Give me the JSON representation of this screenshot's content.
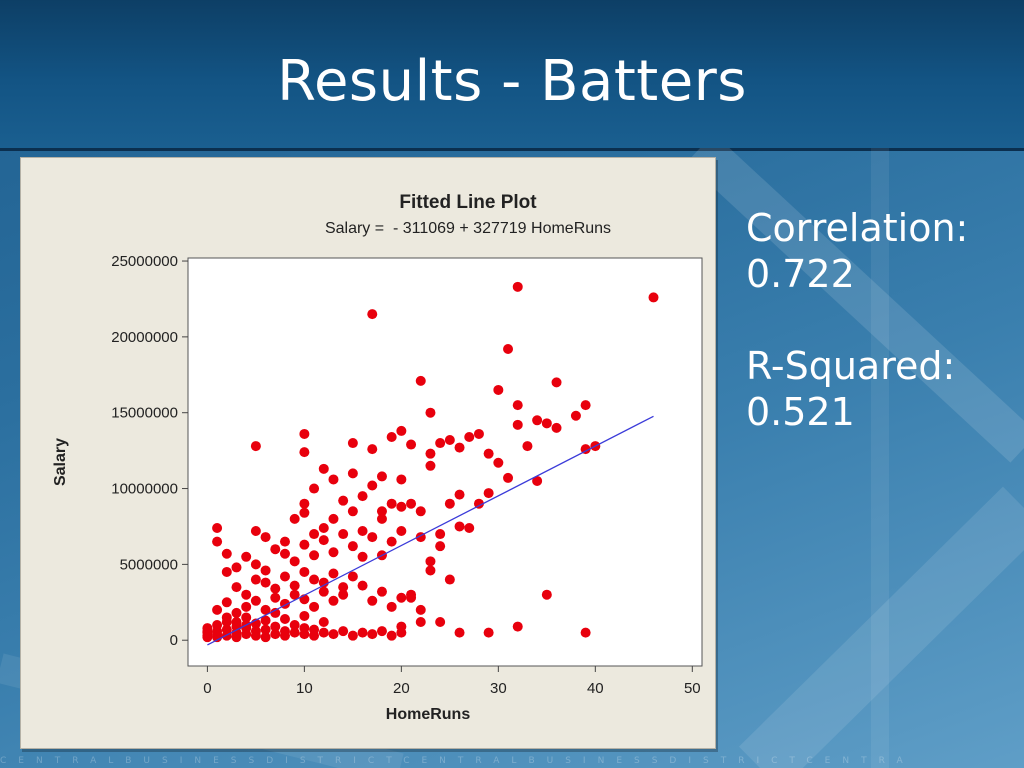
{
  "slide": {
    "title": "Results - Batters",
    "correlation_label": "Correlation:",
    "correlation_value": "0.722",
    "rsquared_label": "R-Squared:",
    "rsquared_value": "0.521",
    "footer_text": "CENTRALBUSINESSDISTRICTCENTRALBUSINESSDISTRICTCENTRA"
  },
  "chart_data": {
    "type": "scatter",
    "title": "Fitted Line Plot",
    "subtitle": "Salary =  - 311069 + 327719 HomeRuns",
    "xlabel": "HomeRuns",
    "ylabel": "Salary",
    "xlim": [
      -2,
      51
    ],
    "ylim": [
      -1700000,
      25200000
    ],
    "xticks": [
      0,
      10,
      20,
      30,
      40,
      50
    ],
    "yticks": [
      0,
      5000000,
      10000000,
      15000000,
      20000000,
      25000000
    ],
    "ytick_labels": [
      "0",
      "5000000",
      "10000000",
      "15000000",
      "20000000",
      "25000000"
    ],
    "grid": false,
    "point_color": "#e8000d",
    "line_color": "#3b3bd9",
    "fit_line": {
      "intercept": -311069,
      "slope": 327719,
      "x_range": [
        0,
        46
      ]
    },
    "points": [
      [
        0,
        300000
      ],
      [
        0,
        500000
      ],
      [
        0,
        800000
      ],
      [
        1,
        200000
      ],
      [
        1,
        600000
      ],
      [
        1,
        400000
      ],
      [
        1,
        1000000
      ],
      [
        2,
        300000
      ],
      [
        2,
        700000
      ],
      [
        2,
        1200000
      ],
      [
        3,
        200000
      ],
      [
        3,
        500000
      ],
      [
        3,
        900000
      ],
      [
        4,
        400000
      ],
      [
        4,
        800000
      ],
      [
        4,
        1500000
      ],
      [
        5,
        300000
      ],
      [
        5,
        600000
      ],
      [
        5,
        1100000
      ],
      [
        6,
        200000
      ],
      [
        6,
        700000
      ],
      [
        6,
        1300000
      ],
      [
        7,
        400000
      ],
      [
        7,
        900000
      ],
      [
        7,
        1800000
      ],
      [
        8,
        300000
      ],
      [
        8,
        600000
      ],
      [
        8,
        1400000
      ],
      [
        9,
        500000
      ],
      [
        9,
        1000000
      ],
      [
        10,
        400000
      ],
      [
        10,
        800000
      ],
      [
        10,
        1600000
      ],
      [
        11,
        300000
      ],
      [
        11,
        700000
      ],
      [
        12,
        500000
      ],
      [
        12,
        1200000
      ],
      [
        13,
        400000
      ],
      [
        14,
        600000
      ],
      [
        15,
        300000
      ],
      [
        16,
        500000
      ],
      [
        17,
        400000
      ],
      [
        18,
        600000
      ],
      [
        19,
        300000
      ],
      [
        20,
        500000
      ],
      [
        20,
        900000
      ],
      [
        1,
        2000000
      ],
      [
        2,
        2500000
      ],
      [
        3,
        1800000
      ],
      [
        4,
        2200000
      ],
      [
        5,
        2600000
      ],
      [
        6,
        2000000
      ],
      [
        7,
        2800000
      ],
      [
        8,
        2400000
      ],
      [
        9,
        3000000
      ],
      [
        10,
        2700000
      ],
      [
        11,
        2200000
      ],
      [
        12,
        3200000
      ],
      [
        13,
        2600000
      ],
      [
        14,
        3500000
      ],
      [
        3,
        3500000
      ],
      [
        4,
        3000000
      ],
      [
        5,
        4000000
      ],
      [
        6,
        3800000
      ],
      [
        7,
        3400000
      ],
      [
        8,
        4200000
      ],
      [
        9,
        3600000
      ],
      [
        10,
        4500000
      ],
      [
        11,
        4000000
      ],
      [
        12,
        3800000
      ],
      [
        13,
        4400000
      ],
      [
        14,
        3000000
      ],
      [
        15,
        4200000
      ],
      [
        16,
        3600000
      ],
      [
        17,
        2600000
      ],
      [
        18,
        3200000
      ],
      [
        19,
        2200000
      ],
      [
        20,
        2800000
      ],
      [
        21,
        3000000
      ],
      [
        22,
        2000000
      ],
      [
        1,
        7400000
      ],
      [
        1,
        6500000
      ],
      [
        2,
        5700000
      ],
      [
        2,
        4500000
      ],
      [
        3,
        4800000
      ],
      [
        4,
        5500000
      ],
      [
        5,
        7200000
      ],
      [
        5,
        5000000
      ],
      [
        6,
        6800000
      ],
      [
        6,
        4600000
      ],
      [
        7,
        6000000
      ],
      [
        8,
        5700000
      ],
      [
        8,
        6500000
      ],
      [
        9,
        5200000
      ],
      [
        9,
        8000000
      ],
      [
        10,
        8400000
      ],
      [
        10,
        6300000
      ],
      [
        11,
        7000000
      ],
      [
        11,
        5600000
      ],
      [
        12,
        6600000
      ],
      [
        12,
        7400000
      ],
      [
        13,
        8000000
      ],
      [
        13,
        5800000
      ],
      [
        14,
        7000000
      ],
      [
        15,
        6200000
      ],
      [
        15,
        8500000
      ],
      [
        16,
        7200000
      ],
      [
        16,
        5500000
      ],
      [
        17,
        6800000
      ],
      [
        18,
        8000000
      ],
      [
        18,
        5600000
      ],
      [
        19,
        9000000
      ],
      [
        19,
        6500000
      ],
      [
        20,
        7200000
      ],
      [
        20,
        8800000
      ],
      [
        21,
        9000000
      ],
      [
        22,
        6800000
      ],
      [
        22,
        8500000
      ],
      [
        23,
        5200000
      ],
      [
        24,
        7000000
      ],
      [
        10,
        9000000
      ],
      [
        10,
        12400000
      ],
      [
        10,
        13600000
      ],
      [
        11,
        10000000
      ],
      [
        12,
        11300000
      ],
      [
        13,
        10600000
      ],
      [
        14,
        9200000
      ],
      [
        15,
        13000000
      ],
      [
        15,
        11000000
      ],
      [
        16,
        9500000
      ],
      [
        17,
        10200000
      ],
      [
        17,
        12600000
      ],
      [
        18,
        8500000
      ],
      [
        18,
        10800000
      ],
      [
        19,
        13400000
      ],
      [
        20,
        10600000
      ],
      [
        20,
        13800000
      ],
      [
        21,
        12900000
      ],
      [
        22,
        17100000
      ],
      [
        23,
        12300000
      ],
      [
        23,
        11500000
      ],
      [
        23,
        15000000
      ],
      [
        24,
        13000000
      ],
      [
        25,
        9000000
      ],
      [
        25,
        13200000
      ],
      [
        26,
        9600000
      ],
      [
        26,
        12700000
      ],
      [
        27,
        13400000
      ],
      [
        27,
        7400000
      ],
      [
        28,
        9000000
      ],
      [
        28,
        13600000
      ],
      [
        29,
        12300000
      ],
      [
        29,
        9700000
      ],
      [
        30,
        16500000
      ],
      [
        30,
        11700000
      ],
      [
        31,
        19200000
      ],
      [
        31,
        10700000
      ],
      [
        32,
        15500000
      ],
      [
        32,
        14200000
      ],
      [
        33,
        12800000
      ],
      [
        34,
        14500000
      ],
      [
        34,
        10500000
      ],
      [
        35,
        14300000
      ],
      [
        36,
        14000000
      ],
      [
        36,
        17000000
      ],
      [
        38,
        14800000
      ],
      [
        39,
        15500000
      ],
      [
        39,
        12600000
      ],
      [
        40,
        12800000
      ],
      [
        5,
        12800000
      ],
      [
        17,
        21500000
      ],
      [
        32,
        23300000
      ],
      [
        46,
        22600000
      ],
      [
        26,
        500000
      ],
      [
        29,
        500000
      ],
      [
        32,
        900000
      ],
      [
        35,
        3000000
      ],
      [
        39,
        500000
      ],
      [
        24,
        1200000
      ],
      [
        21,
        2800000
      ],
      [
        22,
        1200000
      ],
      [
        25,
        4000000
      ],
      [
        26,
        7500000
      ],
      [
        23,
        4600000
      ],
      [
        24,
        6200000
      ],
      [
        2,
        1500000
      ],
      [
        3,
        1200000
      ],
      [
        4,
        1000000
      ],
      [
        0,
        600000
      ],
      [
        0,
        200000
      ]
    ]
  }
}
